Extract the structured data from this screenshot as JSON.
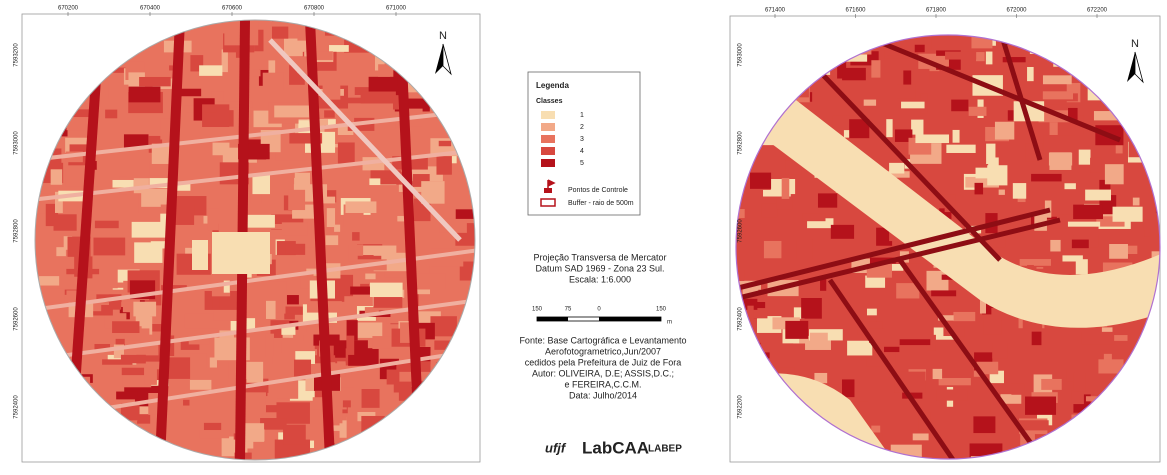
{
  "left_map": {
    "top_coords": [
      "670200",
      "670400",
      "670600",
      "670800",
      "671000"
    ],
    "side_coords": [
      "7593200",
      "7593000",
      "7592800",
      "7592600",
      "7592400"
    ],
    "north": "N"
  },
  "legend": {
    "title": "Legenda",
    "subtitle": "Classes",
    "classes": [
      {
        "label": "1",
        "color": "#f8deb2"
      },
      {
        "label": "2",
        "color": "#f2a988"
      },
      {
        "label": "3",
        "color": "#e8735e"
      },
      {
        "label": "4",
        "color": "#d8483f"
      },
      {
        "label": "5",
        "color": "#b5121b"
      }
    ],
    "control_points": "Pontos de Controle",
    "buffer": "Buffer - raio de 500m"
  },
  "projection": [
    "Projeção Transversa de Mercator",
    "Datum SAD 1969 - Zona 23 Sul.",
    "Escala: 1:6.000"
  ],
  "scale_bar": [
    "150",
    "75",
    "0",
    "150",
    "m"
  ],
  "source": [
    "Fonte: Base Cartográfica e Levantamento",
    "Aerofotogrametrico,Jun/2007",
    "cedidos pela Prefeitura de Juiz de Fora",
    "Autor: OLIVEIRA, D.E; ASSIS,D.C.;",
    "e FEREIRA,C.C.M.",
    "Data: Julho/2014"
  ],
  "logos": [
    "ufjf",
    "LabCAA",
    "LABEP"
  ],
  "right_map": {
    "top_coords": [
      "671400",
      "671600",
      "671800",
      "672000",
      "672200"
    ],
    "side_coords": [
      "7593000",
      "7592800",
      "7592600",
      "7592400",
      "7592200"
    ],
    "north": "N"
  }
}
